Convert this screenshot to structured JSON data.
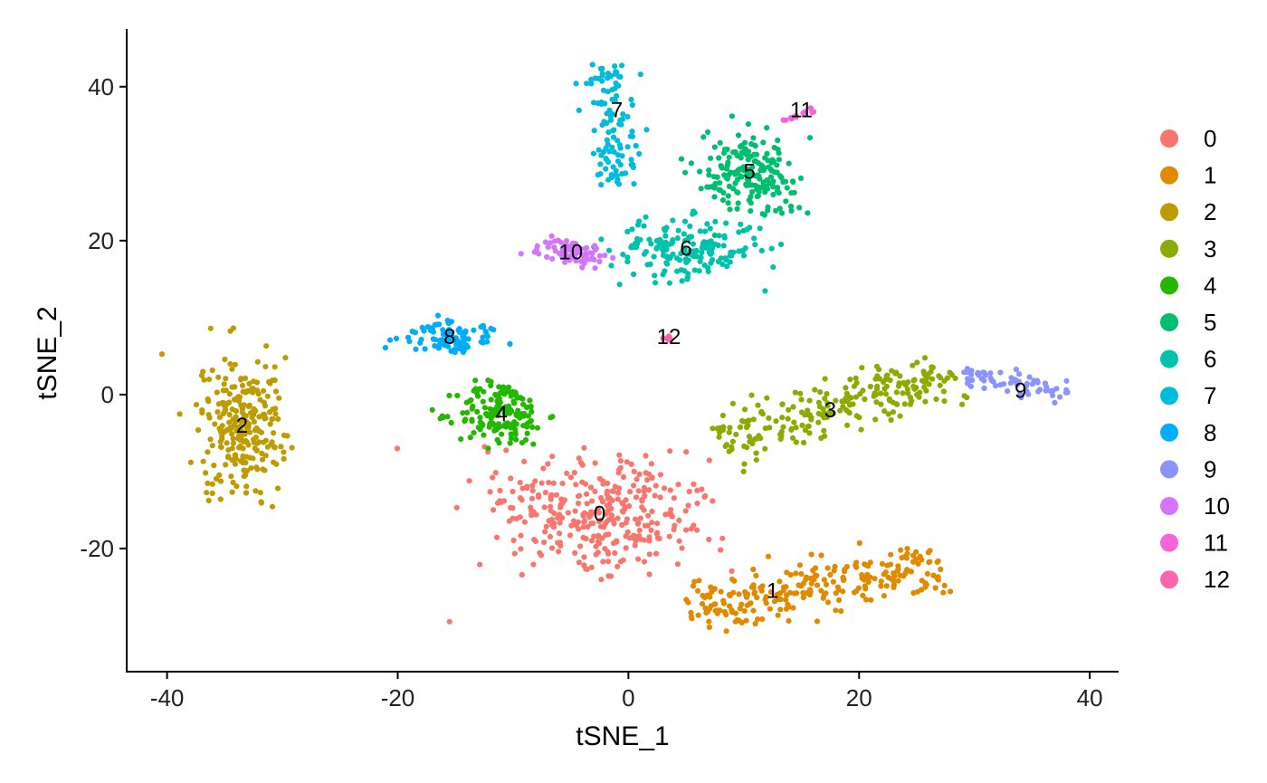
{
  "chart_data": {
    "type": "scatter",
    "xlabel": "tSNE_1",
    "ylabel": "tSNE_2",
    "xlim": [
      -43.5,
      42.5
    ],
    "ylim": [
      -36,
      47.5
    ],
    "x_ticks": [
      -40,
      -20,
      0,
      20,
      40
    ],
    "y_ticks": [
      -20,
      0,
      20,
      40
    ],
    "x_tick_labels": [
      "-40",
      "-20",
      "0",
      "20",
      "40"
    ],
    "y_tick_labels": [
      "-20",
      "0",
      "20",
      "40"
    ],
    "grid": false,
    "legend_position": "right",
    "clusters": [
      {
        "name": "0",
        "color": "#F8766D",
        "label_pos": [
          -2.5,
          -15.5
        ],
        "n": 330,
        "shape": "blob",
        "spread": [
          8.0,
          7.0
        ],
        "rot": -20
      },
      {
        "name": "1",
        "color": "#E18A00",
        "label_pos": [
          12.5,
          -25.5
        ],
        "n": 250,
        "shape": "band",
        "from": [
          5,
          -28
        ],
        "to": [
          27,
          -22
        ],
        "width": 3.5
      },
      {
        "name": "2",
        "color": "#BE9C00",
        "label_pos": [
          -33.5,
          -4.0
        ],
        "n": 260,
        "shape": "blob",
        "spread": [
          3.0,
          7.0
        ],
        "rot": 0
      },
      {
        "name": "3",
        "color": "#8CAB00",
        "label_pos": [
          17.5,
          -2.0
        ],
        "n": 230,
        "shape": "band",
        "from": [
          8,
          -6
        ],
        "to": [
          28,
          3
        ],
        "width": 3.5
      },
      {
        "name": "4",
        "color": "#24B700",
        "label_pos": [
          -11.0,
          -2.5
        ],
        "n": 160,
        "shape": "blob",
        "spread": [
          3.2,
          3.5
        ],
        "rot": 0
      },
      {
        "name": "5",
        "color": "#00BE70",
        "label_pos": [
          10.5,
          29.0
        ],
        "n": 190,
        "shape": "blob",
        "spread": [
          3.5,
          4.5
        ],
        "rot": 30
      },
      {
        "name": "6",
        "color": "#00C1AB",
        "label_pos": [
          5.0,
          19.0
        ],
        "n": 180,
        "shape": "blob",
        "spread": [
          5.5,
          3.2
        ],
        "rot": 0
      },
      {
        "name": "7",
        "color": "#00BBDA",
        "label_pos": [
          -1.0,
          37.0
        ],
        "n": 110,
        "shape": "band",
        "from": [
          -1,
          27
        ],
        "to": [
          -2,
          43
        ],
        "width": 2.0
      },
      {
        "name": "8",
        "color": "#00ACFC",
        "label_pos": [
          -15.5,
          7.5
        ],
        "n": 90,
        "shape": "blob",
        "spread": [
          3.5,
          1.8
        ],
        "rot": 0
      },
      {
        "name": "9",
        "color": "#8B93FF",
        "label_pos": [
          34.0,
          0.5
        ],
        "n": 70,
        "shape": "band",
        "from": [
          29,
          3
        ],
        "to": [
          38,
          0
        ],
        "width": 1.4
      },
      {
        "name": "10",
        "color": "#D575FE",
        "label_pos": [
          -5.0,
          18.5
        ],
        "n": 80,
        "shape": "blob",
        "spread": [
          2.4,
          1.4
        ],
        "rot": 0
      },
      {
        "name": "11",
        "color": "#F962DD",
        "label_pos": [
          15.0,
          37.0
        ],
        "n": 14,
        "shape": "band",
        "from": [
          13.5,
          35.5
        ],
        "to": [
          16,
          37
        ],
        "width": 0.3
      },
      {
        "name": "12",
        "color": "#FF65AC",
        "label_pos": [
          3.5,
          7.5
        ],
        "n": 6,
        "shape": "blob",
        "spread": [
          0.5,
          0.4
        ],
        "rot": 0
      }
    ]
  },
  "legend": {
    "items": [
      {
        "label": "0",
        "color": "#F8766D"
      },
      {
        "label": "1",
        "color": "#E18A00"
      },
      {
        "label": "2",
        "color": "#BE9C00"
      },
      {
        "label": "3",
        "color": "#8CAB00"
      },
      {
        "label": "4",
        "color": "#24B700"
      },
      {
        "label": "5",
        "color": "#00BE70"
      },
      {
        "label": "6",
        "color": "#00C1AB"
      },
      {
        "label": "7",
        "color": "#00BBDA"
      },
      {
        "label": "8",
        "color": "#00ACFC"
      },
      {
        "label": "9",
        "color": "#8B93FF"
      },
      {
        "label": "10",
        "color": "#D575FE"
      },
      {
        "label": "11",
        "color": "#F962DD"
      },
      {
        "label": "12",
        "color": "#FF65AC"
      }
    ]
  }
}
